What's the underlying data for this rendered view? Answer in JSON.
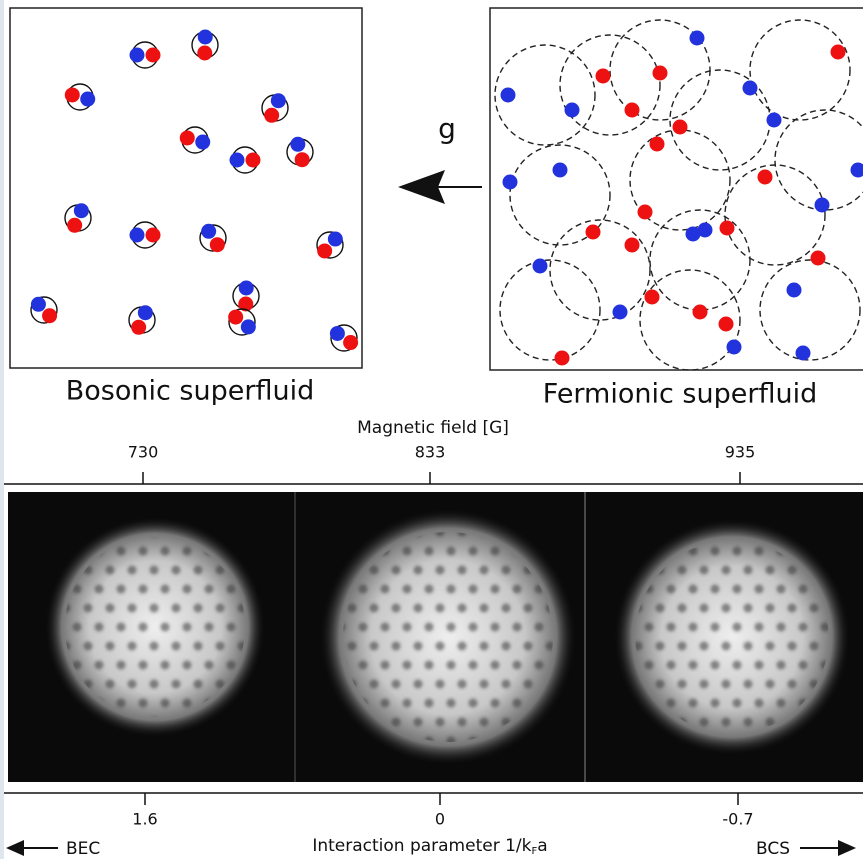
{
  "panels": {
    "bosonic": {
      "label": "Bosonic superfluid"
    },
    "fermionic": {
      "label": "Fermionic superfluid"
    },
    "arrow_label": "g"
  },
  "top_axis": {
    "title": "Magnetic field [G]",
    "ticks": [
      "730",
      "833",
      "935"
    ]
  },
  "bottom_axis": {
    "ticks": [
      "1.6",
      "0",
      "-0.7"
    ],
    "title_parts": [
      "Interaction parameter 1/k",
      "F",
      "a"
    ],
    "left_end": "BEC",
    "right_end": "BCS"
  }
}
